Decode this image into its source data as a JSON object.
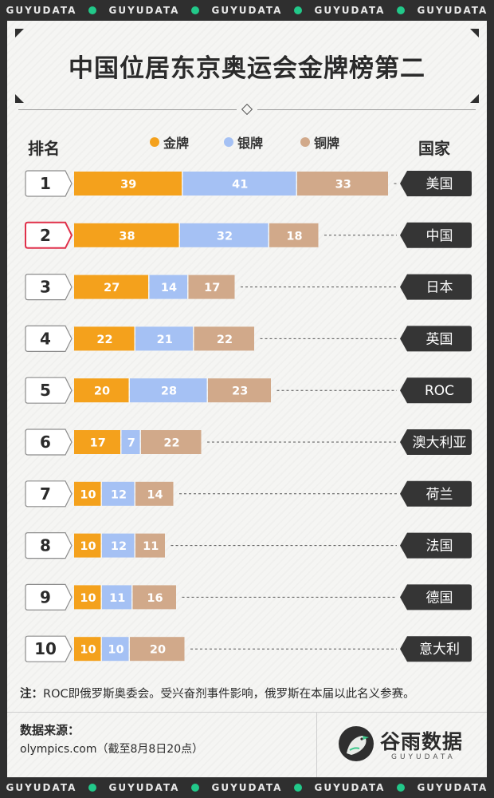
{
  "brand_strip": [
    "GUYUDATA",
    "GUYUDATA",
    "GUYUDATA",
    "GUYUDATA",
    "GUYUDATA"
  ],
  "title": "中国位居东京奥运会金牌榜第二",
  "headers": {
    "rank": "排名",
    "country": "国家"
  },
  "legend": [
    {
      "label": "金牌",
      "color": "#f4a11c"
    },
    {
      "label": "银牌",
      "color": "#a5c1f4"
    },
    {
      "label": "铜牌",
      "color": "#d1a98a"
    }
  ],
  "colors": {
    "highlight": "#e0304a",
    "dark": "#353535",
    "leader": "#555555"
  },
  "chart_data": {
    "type": "bar",
    "orientation": "horizontal-stacked",
    "categories": [
      "美国",
      "中国",
      "日本",
      "英国",
      "ROC",
      "澳大利亚",
      "荷兰",
      "法国",
      "德国",
      "意大利"
    ],
    "ranks": [
      "1",
      "2",
      "3",
      "4",
      "5",
      "6",
      "7",
      "8",
      "9",
      "10"
    ],
    "highlight_index": 1,
    "series": [
      {
        "name": "金牌",
        "values": [
          39,
          38,
          27,
          22,
          20,
          17,
          10,
          10,
          10,
          10
        ]
      },
      {
        "name": "银牌",
        "values": [
          41,
          32,
          14,
          21,
          28,
          7,
          12,
          12,
          11,
          10
        ]
      },
      {
        "name": "铜牌",
        "values": [
          33,
          18,
          17,
          22,
          23,
          22,
          14,
          11,
          16,
          20
        ]
      }
    ]
  },
  "note": {
    "label": "注",
    "text": "ROC即俄罗斯奥委会。受兴奋剂事件影响，俄罗斯在本届以此名义参赛。"
  },
  "source": {
    "label": "数据来源：",
    "text": "olympics.com（截至8月8日20点）"
  },
  "logo": {
    "name": "谷雨数据",
    "sub": "GUYUDATA"
  }
}
